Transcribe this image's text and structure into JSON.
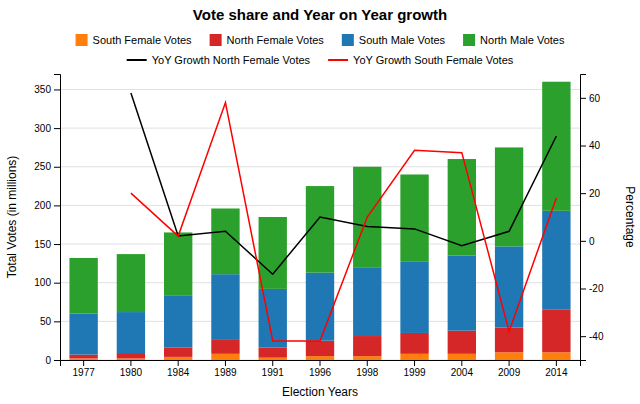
{
  "chart_data": {
    "type": "bar",
    "title": "Vote share and Year on Year growth",
    "xlabel": "Election Years",
    "ylabel": "Total Votes (in millions)",
    "y2label": "Percentage",
    "categories": [
      "1977",
      "1980",
      "1984",
      "1989",
      "1991",
      "1996",
      "1998",
      "1999",
      "2004",
      "2009",
      "2014"
    ],
    "stacked": true,
    "grid": true,
    "legend": "top",
    "ylim": [
      0,
      370
    ],
    "yticks": [
      0,
      50,
      100,
      150,
      200,
      250,
      300,
      350
    ],
    "y2lim": [
      -50,
      70
    ],
    "y2ticks": [
      -40,
      -20,
      0,
      20,
      40,
      60
    ],
    "series": [
      {
        "name": "South Female Votes",
        "type": "bar",
        "color": "#ff7f0e",
        "values": [
          2,
          2,
          4,
          8,
          3,
          5,
          5,
          8,
          8,
          10,
          10
        ]
      },
      {
        "name": "North Female Votes",
        "type": "bar",
        "color": "#d62728",
        "values": [
          5,
          7,
          12,
          18,
          13,
          20,
          26,
          27,
          30,
          32,
          55
        ]
      },
      {
        "name": "South Male Votes",
        "type": "bar",
        "color": "#1f77b4",
        "values": [
          53,
          53,
          67,
          85,
          76,
          88,
          89,
          92,
          97,
          105,
          128
        ]
      },
      {
        "name": "North Male Votes",
        "type": "bar",
        "color": "#2ca02c",
        "values": [
          72,
          75,
          82,
          85,
          93,
          112,
          130,
          113,
          125,
          128,
          167
        ]
      },
      {
        "name": "YoY Growth North Female Votes",
        "type": "line",
        "axis": "y2",
        "color": "black",
        "values": [
          null,
          62,
          2,
          4,
          -14,
          10,
          6,
          5,
          -2,
          4,
          44
        ]
      },
      {
        "name": "YoY Growth South Female Votes",
        "type": "line",
        "axis": "y2",
        "color": "red",
        "values": [
          null,
          20,
          2,
          58,
          -42,
          -42,
          10,
          38,
          37,
          -38,
          18
        ]
      }
    ]
  }
}
